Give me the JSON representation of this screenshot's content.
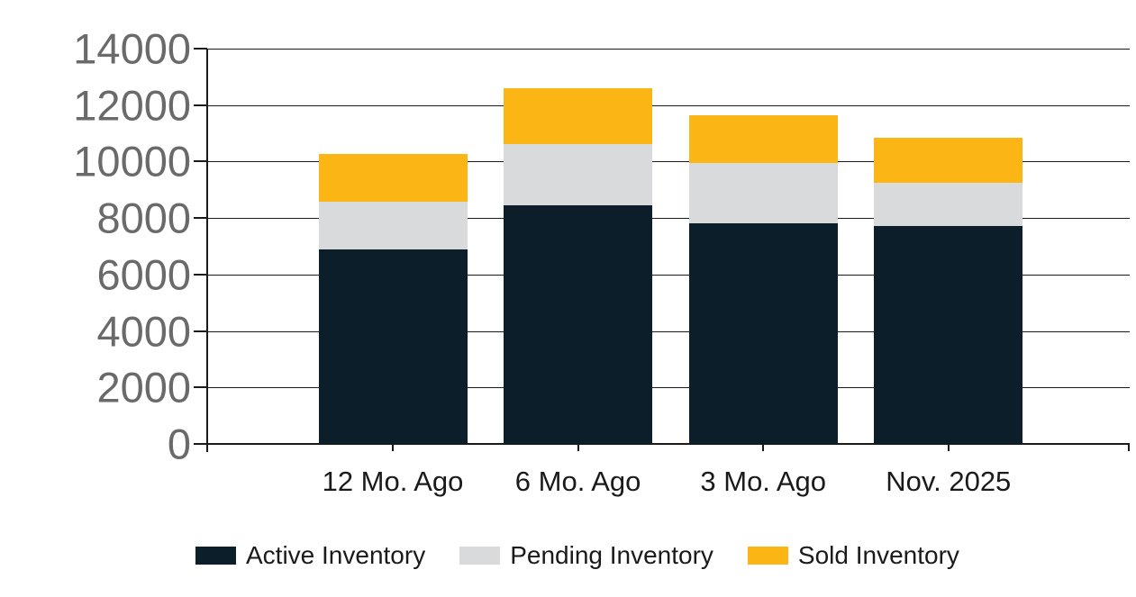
{
  "chart_data": {
    "type": "bar",
    "stacked": true,
    "title": "",
    "xlabel": "",
    "ylabel": "",
    "categories": [
      "12 Mo. Ago",
      "6 Mo. Ago",
      "3 Mo. Ago",
      "Nov. 2025"
    ],
    "series": [
      {
        "name": "Active Inventory",
        "color": "#0c1e2a",
        "values": [
          6900,
          8450,
          7810,
          7720
        ]
      },
      {
        "name": "Pending Inventory",
        "color": "#d9dadc",
        "values": [
          1680,
          2170,
          2140,
          1520
        ]
      },
      {
        "name": "Sold Inventory",
        "color": "#fbb616",
        "values": [
          1700,
          1970,
          1700,
          1600
        ]
      }
    ],
    "stack_totals": [
      10280,
      12590,
      11650,
      10840
    ],
    "ylim": [
      0,
      14000
    ],
    "yticks": [
      0,
      2000,
      4000,
      6000,
      8000,
      10000,
      12000,
      14000
    ],
    "grid": "horizontal",
    "legend_position": "bottom"
  },
  "colors": {
    "background": "#ffffff",
    "axis": "#1a1a1a",
    "y_tick_label": "#6a6a6a",
    "x_tick_label": "#1a1a1a",
    "legend_text": "#1a1a1a"
  }
}
